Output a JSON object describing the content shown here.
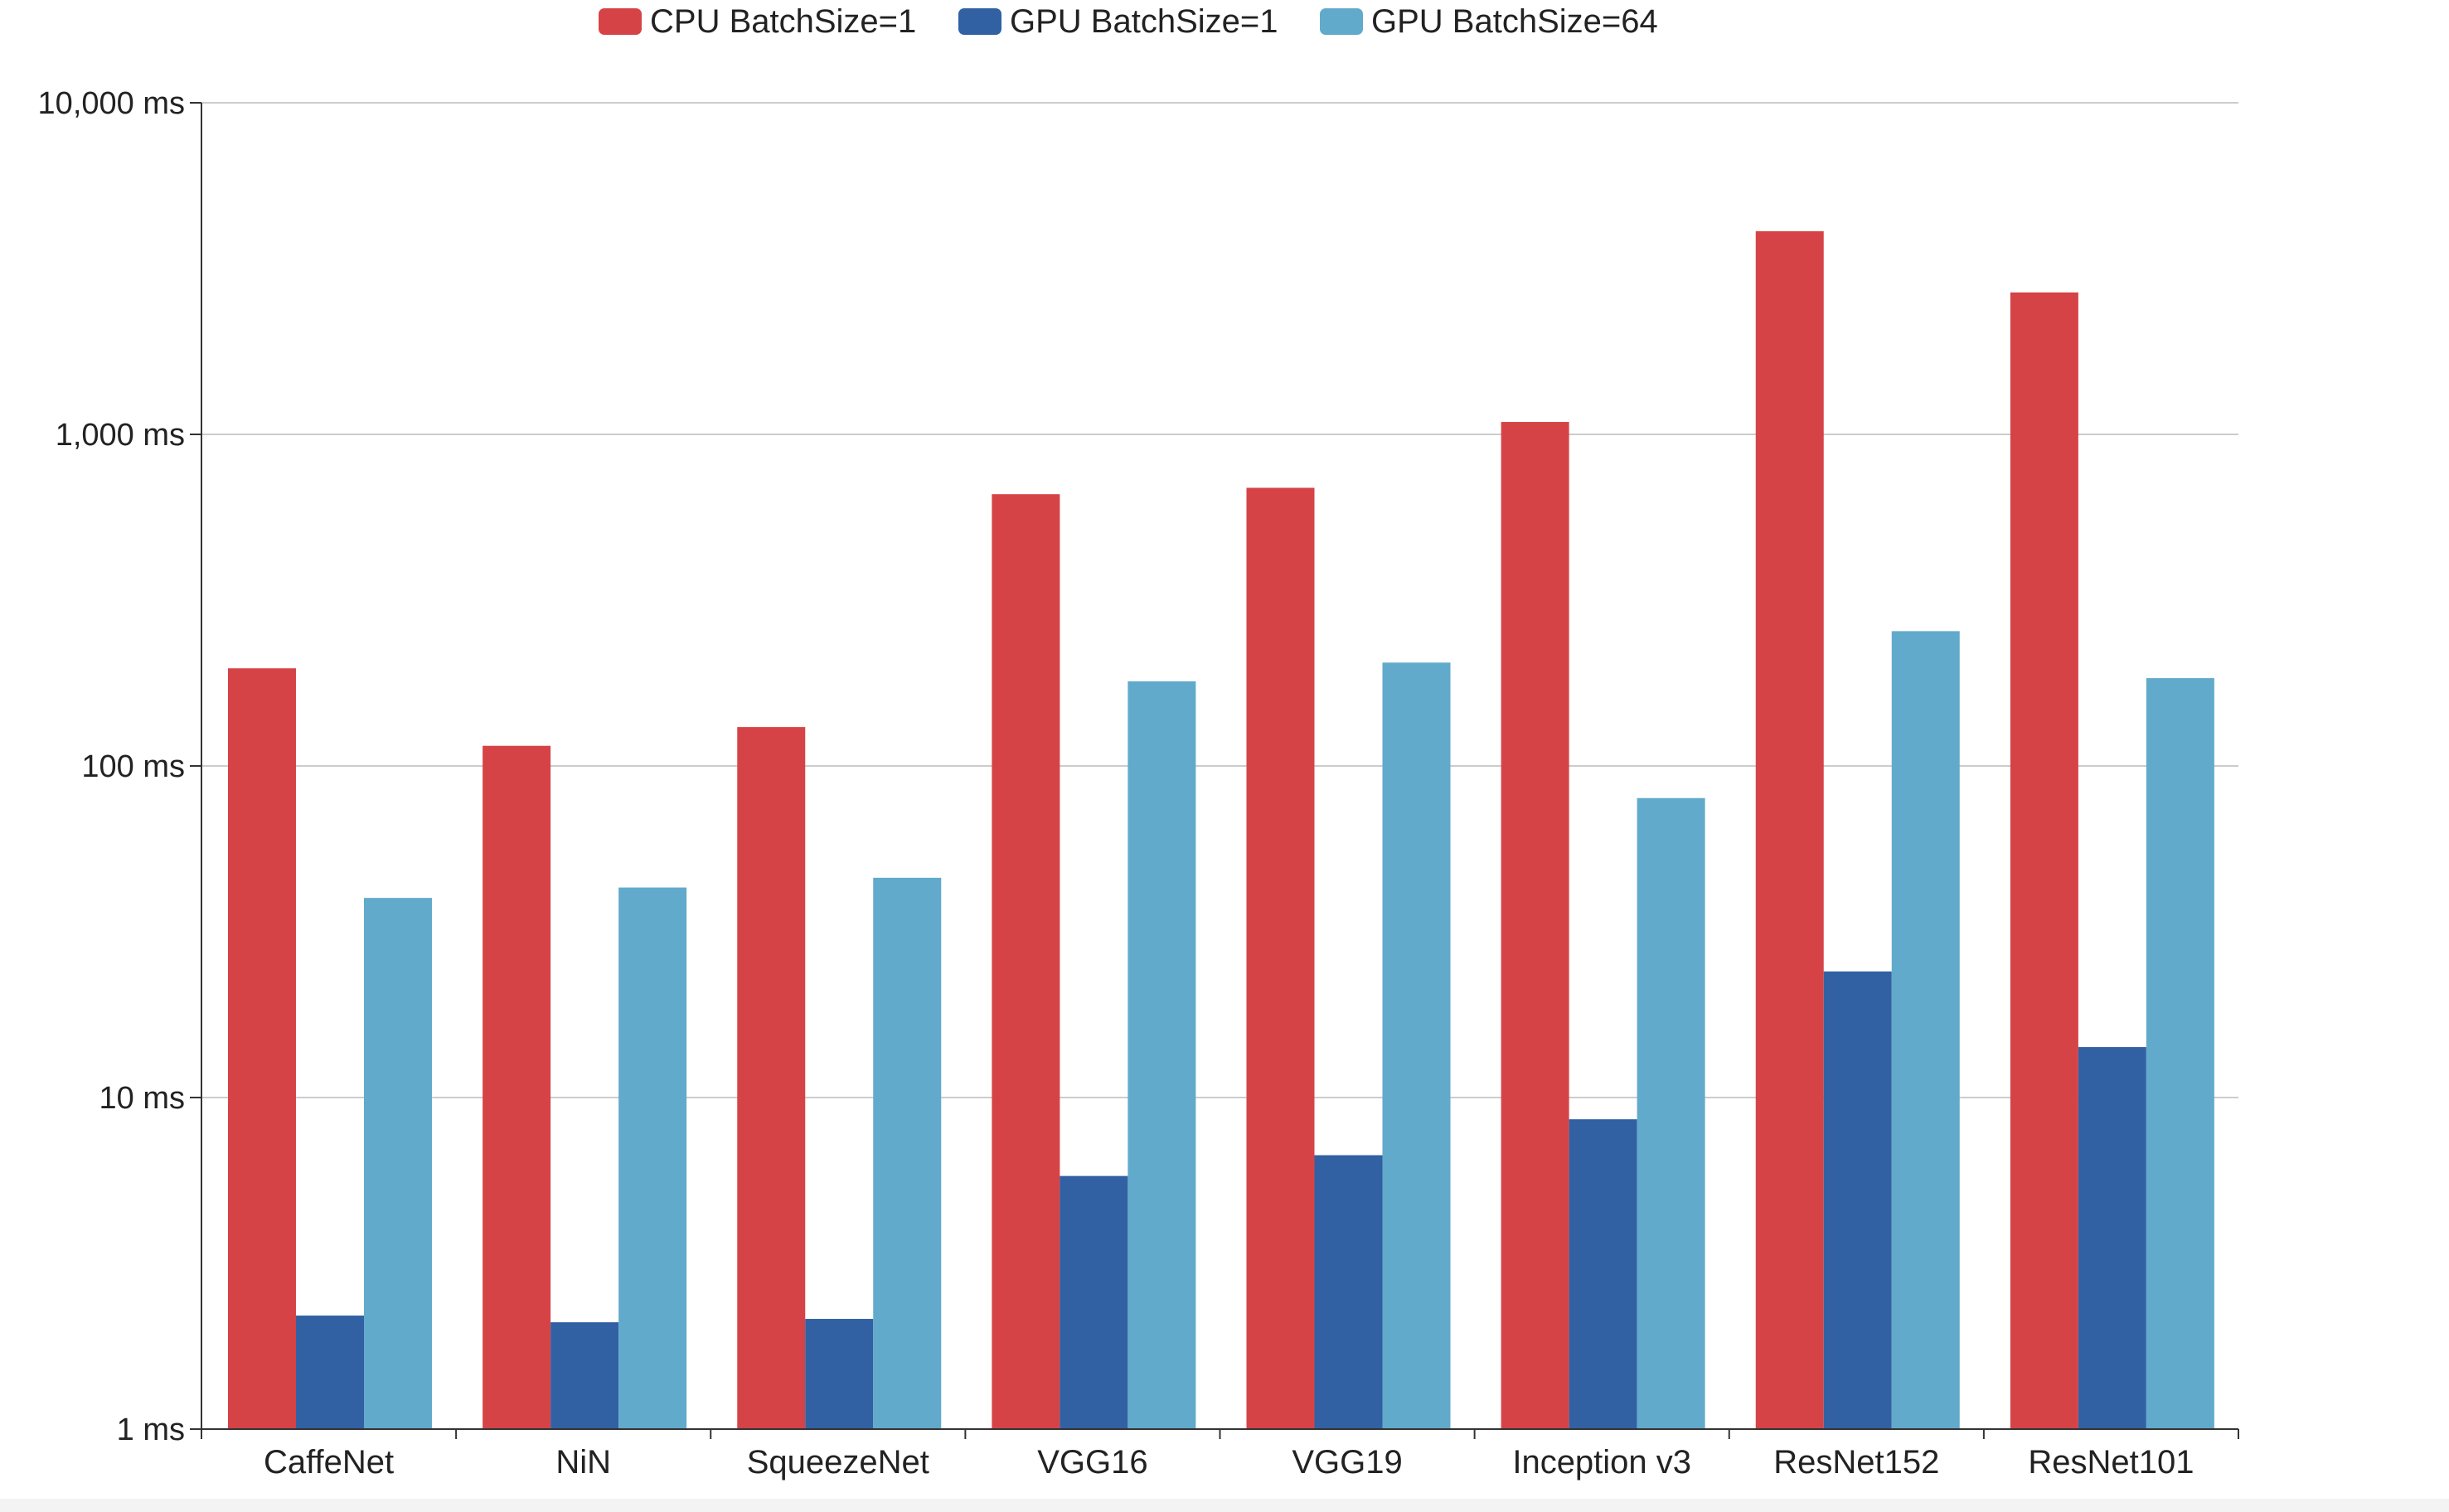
{
  "chart_data": {
    "type": "bar",
    "scale": "log",
    "categories": [
      "CaffeNet",
      "NiN",
      "SqueezeNet",
      "VGG16",
      "VGG19",
      "Inception v3",
      "ResNet152",
      "ResNet101"
    ],
    "series": [
      {
        "name": "CPU BatchSize=1",
        "color": "#d64347",
        "values": [
          197,
          115,
          131,
          660,
          690,
          1090,
          4100,
          2680
        ]
      },
      {
        "name": "GPU BatchSize=1",
        "color": "#3161a3",
        "values": [
          2.2,
          2.1,
          2.15,
          5.8,
          6.7,
          8.6,
          24,
          14.2
        ]
      },
      {
        "name": "GPU BatchSize=64",
        "color": "#62aacb",
        "values": [
          40,
          43,
          46,
          180,
          205,
          80,
          255,
          184
        ]
      }
    ],
    "ylim": [
      1,
      10000
    ],
    "yticks": [
      {
        "value": 1,
        "label": "1 ms"
      },
      {
        "value": 10,
        "label": "10 ms"
      },
      {
        "value": 100,
        "label": "100 ms"
      },
      {
        "value": 1000,
        "label": "1,000 ms"
      },
      {
        "value": 10000,
        "label": "10,000 ms"
      }
    ],
    "grid": true,
    "legend_position": "top-center",
    "title": "",
    "xlabel": "",
    "ylabel": ""
  }
}
